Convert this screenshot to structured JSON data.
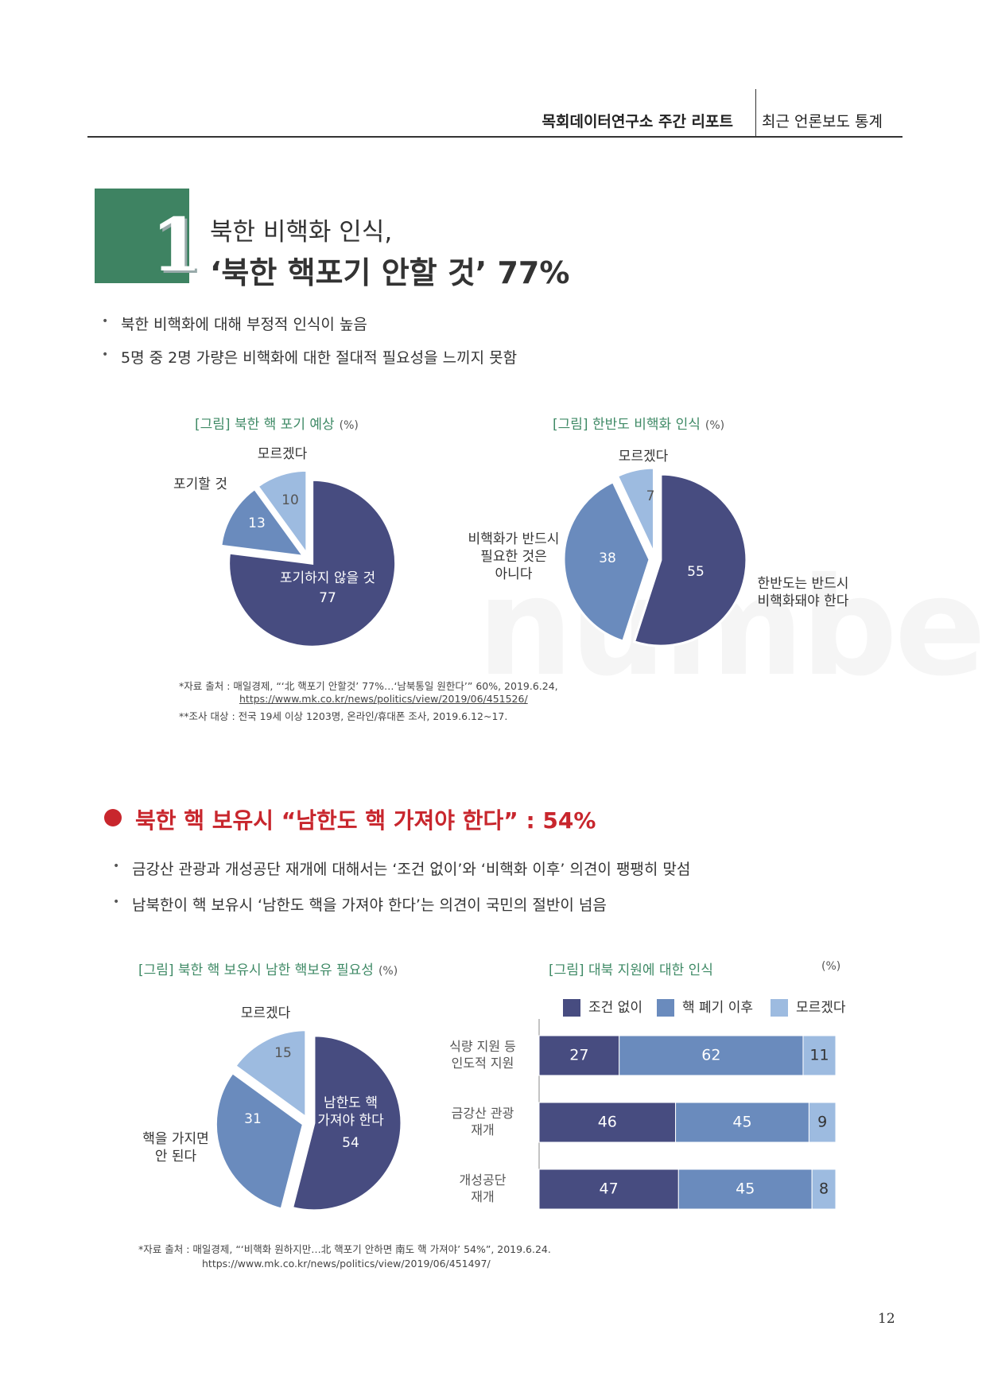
{
  "header": {
    "report": "목회데이터연구소 주간 리포트",
    "section": "최근 언론보도 통계"
  },
  "section1": {
    "number": "1",
    "title_line1": "북한 비핵화 인식,",
    "title_line2": "‘북한 핵포기 안할 것’ 77%",
    "bullets": [
      "북한 비핵화에 대해 부정적 인식이 높음",
      "5명 중 2명 가량은 비핵화에 대한 절대적 필요성을 느끼지 못함"
    ]
  },
  "source1": [
    "*자료 출처 : 매일경제, “‘北 핵포기 안할것’ 77%…‘남북통일 원한다’” 60%, 2019.6.24,",
    "https://www.mk.co.kr/news/politics/view/2019/06/451526/",
    "**조사 대상 : 전국 19세 이상 1203명, 온라인/휴대폰 조사, 2019.6.12~17."
  ],
  "watermark": "numbers",
  "section2": {
    "title": "북한 핵 보유시 “남한도 핵 가져야 한다” : 54%",
    "bullets": [
      "금강산 관광과 개성공단 재개에 대해서는 ‘조건 없이’와 ‘비핵화 이후’ 의견이 팽팽히 맞섬",
      "남북한이 핵 보유시 ‘남한도 핵을 가져야 한다’는 의견이 국민의 절반이 넘음"
    ]
  },
  "source2": [
    "*자료 출처 : 매일경제, “‘비핵화 원하지만…北 핵포기 안하면 南도 핵 가져야’ 54%”, 2019.6.24.",
    "https://www.mk.co.kr/news/politics/view/2019/06/451497/"
  ],
  "page_number": "12",
  "chart_data": [
    {
      "type": "pie",
      "title": "[그림] 북한 핵 포기 예상",
      "unit_label": "(%)",
      "categories": [
        "포기하지 않을 것",
        "포기할 것",
        "모르겠다"
      ],
      "values": [
        77,
        13,
        10
      ],
      "colors": [
        "#474c80",
        "#6a8bbd",
        "#9dbbe0"
      ]
    },
    {
      "type": "pie",
      "title": "[그림] 한반도 비핵화 인식",
      "unit_label": "(%)",
      "categories": [
        "한반도는 반드시\n비핵화돼야 한다",
        "비핵화가 반드시\n필요한 것은\n아니다",
        "모르겠다"
      ],
      "values": [
        55,
        38,
        7
      ],
      "colors": [
        "#474c80",
        "#6a8bbd",
        "#9dbbe0"
      ]
    },
    {
      "type": "pie",
      "title": "[그림] 북한 핵 보유시 남한 핵보유 필요성",
      "unit_label": "(%)",
      "categories": [
        "남한도 핵\n가져야 한다",
        "핵을 가지면\n안 된다",
        "모르겠다"
      ],
      "values": [
        54,
        31,
        15
      ],
      "colors": [
        "#474c80",
        "#6a8bbd",
        "#9dbbe0"
      ]
    },
    {
      "type": "bar",
      "orientation": "horizontal",
      "stacked": true,
      "title": "[그림] 대북 지원에 대한 인식",
      "unit_label": "(%)",
      "categories": [
        "식량 지원 등\n인도적 지원",
        "금강산 관광\n재개",
        "개성공단\n재개"
      ],
      "series": [
        {
          "name": "조건 없이",
          "color": "#474c80",
          "values": [
            27,
            46,
            47
          ]
        },
        {
          "name": "핵 폐기 이후",
          "color": "#6a8bbd",
          "values": [
            62,
            45,
            45
          ]
        },
        {
          "name": "모르겠다",
          "color": "#9dbbe0",
          "values": [
            11,
            9,
            8
          ]
        }
      ],
      "xlim": [
        0,
        100
      ]
    }
  ]
}
